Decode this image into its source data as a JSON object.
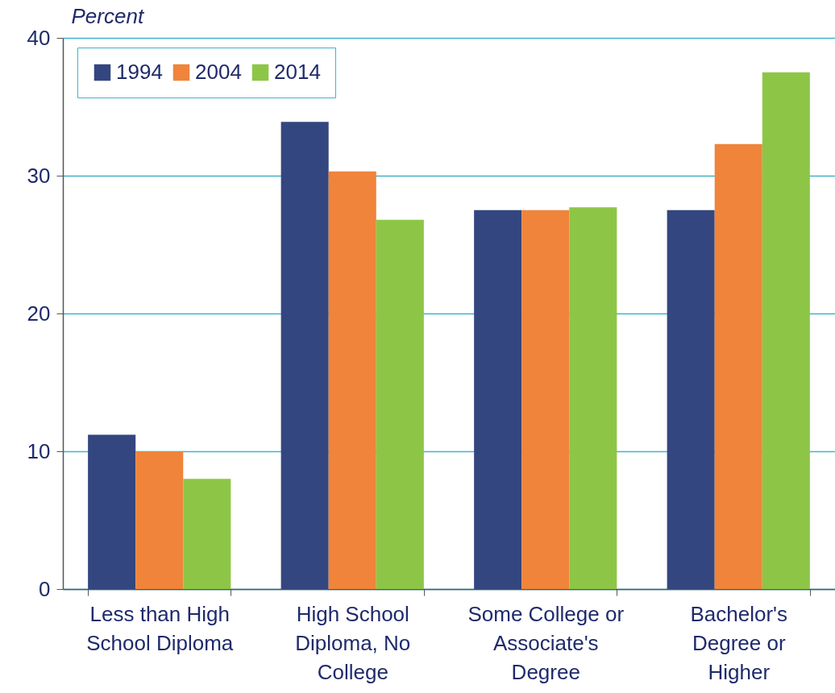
{
  "chart_data": {
    "type": "bar",
    "ylabel": "Percent",
    "categories": [
      "Less than High School Diploma",
      "High School Diploma, No College",
      "Some College or Associate's Degree",
      "Bachelor's Degree or Higher"
    ],
    "series": [
      {
        "name": "1994",
        "color": "#34467f",
        "values": [
          11.2,
          33.9,
          27.5,
          27.5
        ]
      },
      {
        "name": "2004",
        "color": "#ef843a",
        "values": [
          10.0,
          30.3,
          27.5,
          32.3
        ]
      },
      {
        "name": "2014",
        "color": "#8dc647",
        "values": [
          8.0,
          26.8,
          27.7,
          37.5
        ]
      }
    ],
    "ylim": [
      0,
      40
    ],
    "yticks": [
      0,
      10,
      20,
      30,
      40
    ],
    "grid": "y",
    "legend": "top left"
  }
}
